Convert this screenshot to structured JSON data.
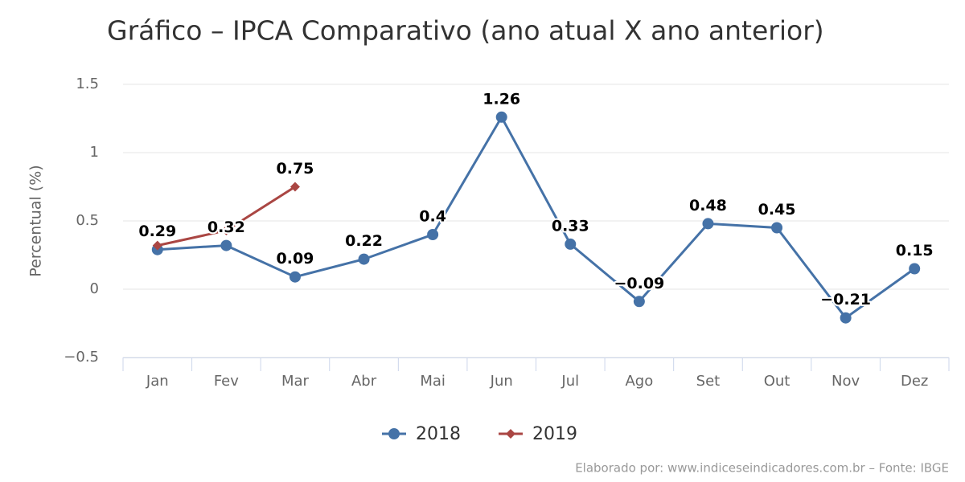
{
  "chart_data": {
    "type": "line",
    "title": "Gráfico – IPCA Comparativo (ano atual X ano anterior)",
    "y_label": "Percentual (%)",
    "credit": "Elaborado por: www.indiceseindicadores.com.br – Fonte: IBGE",
    "categories": [
      "Jan",
      "Fev",
      "Mar",
      "Abr",
      "Mai",
      "Jun",
      "Jul",
      "Ago",
      "Set",
      "Out",
      "Nov",
      "Dez"
    ],
    "series": [
      {
        "name": "2018",
        "color": "#4572a7",
        "marker": "circle",
        "values": [
          0.29,
          0.32,
          0.09,
          0.22,
          0.4,
          1.26,
          0.33,
          -0.09,
          0.48,
          0.45,
          -0.21,
          0.15
        ],
        "value_labels": [
          "0.29",
          "0.32",
          "0.09",
          "0.22",
          "0.4",
          "1.26",
          "0.33",
          "−0.09",
          "0.48",
          "0.45",
          "−0.21",
          "0.15"
        ]
      },
      {
        "name": "2019",
        "color": "#aa4643",
        "marker": "diamond",
        "values": [
          0.32,
          0.43,
          0.75,
          null,
          null,
          null,
          null,
          null,
          null,
          null,
          null,
          null
        ],
        "value_labels": [
          null,
          null,
          "0.75",
          null,
          null,
          null,
          null,
          null,
          null,
          null,
          null,
          null
        ]
      }
    ],
    "ylim": [
      -0.5,
      1.5
    ],
    "yticks": [
      {
        "value": -0.5,
        "label": "−0.5"
      },
      0,
      0.5,
      1,
      1.5
    ],
    "grid": true,
    "legend": "bottom"
  }
}
